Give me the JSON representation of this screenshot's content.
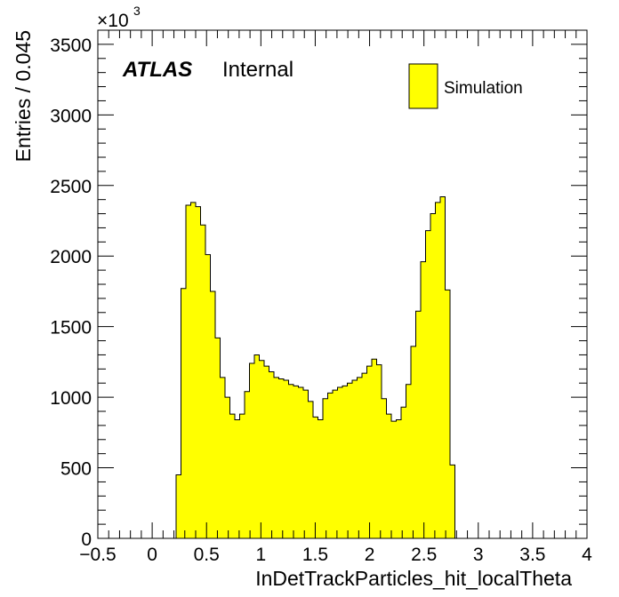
{
  "chart_data": {
    "type": "histogram",
    "xlabel": "InDetTrackParticles_hit_localTheta",
    "ylabel": "Entries / 0.045",
    "y_multiplier": "×10",
    "y_multiplier_exp": "3",
    "xlim": [
      -0.5,
      4.0
    ],
    "ylim": [
      0,
      3600
    ],
    "bin_start": 0.22,
    "bin_width": 0.045,
    "values": [
      450,
      1770,
      2360,
      2380,
      2350,
      2220,
      2010,
      1750,
      1420,
      1140,
      1000,
      880,
      840,
      880,
      1040,
      1240,
      1300,
      1260,
      1220,
      1180,
      1140,
      1130,
      1120,
      1090,
      1080,
      1070,
      1050,
      970,
      860,
      840,
      990,
      1030,
      1050,
      1070,
      1080,
      1100,
      1120,
      1140,
      1170,
      1220,
      1270,
      1230,
      990,
      880,
      830,
      840,
      930,
      1090,
      1360,
      1610,
      1960,
      2180,
      2300,
      2380,
      2420,
      1760,
      520
    ],
    "x_ticks": [
      {
        "v": -0.5,
        "label": "−0.5"
      },
      {
        "v": 0,
        "label": "0"
      },
      {
        "v": 0.5,
        "label": "0.5"
      },
      {
        "v": 1,
        "label": "1"
      },
      {
        "v": 1.5,
        "label": "1.5"
      },
      {
        "v": 2,
        "label": "2"
      },
      {
        "v": 2.5,
        "label": "2.5"
      },
      {
        "v": 3,
        "label": "3"
      },
      {
        "v": 3.5,
        "label": "3.5"
      },
      {
        "v": 4,
        "label": "4"
      }
    ],
    "y_ticks": [
      {
        "v": 0,
        "label": "0"
      },
      {
        "v": 500,
        "label": "500"
      },
      {
        "v": 1000,
        "label": "1000"
      },
      {
        "v": 1500,
        "label": "1500"
      },
      {
        "v": 2000,
        "label": "2000"
      },
      {
        "v": 2500,
        "label": "2500"
      },
      {
        "v": 3000,
        "label": "3000"
      },
      {
        "v": 3500,
        "label": "3500"
      }
    ],
    "fill_color": "#ffff00",
    "line_color": "#000000",
    "legend": {
      "label": "Simulation",
      "placement": "top-right"
    },
    "atlas_label": {
      "bold": "ATLAS",
      "text": "Internal"
    }
  }
}
